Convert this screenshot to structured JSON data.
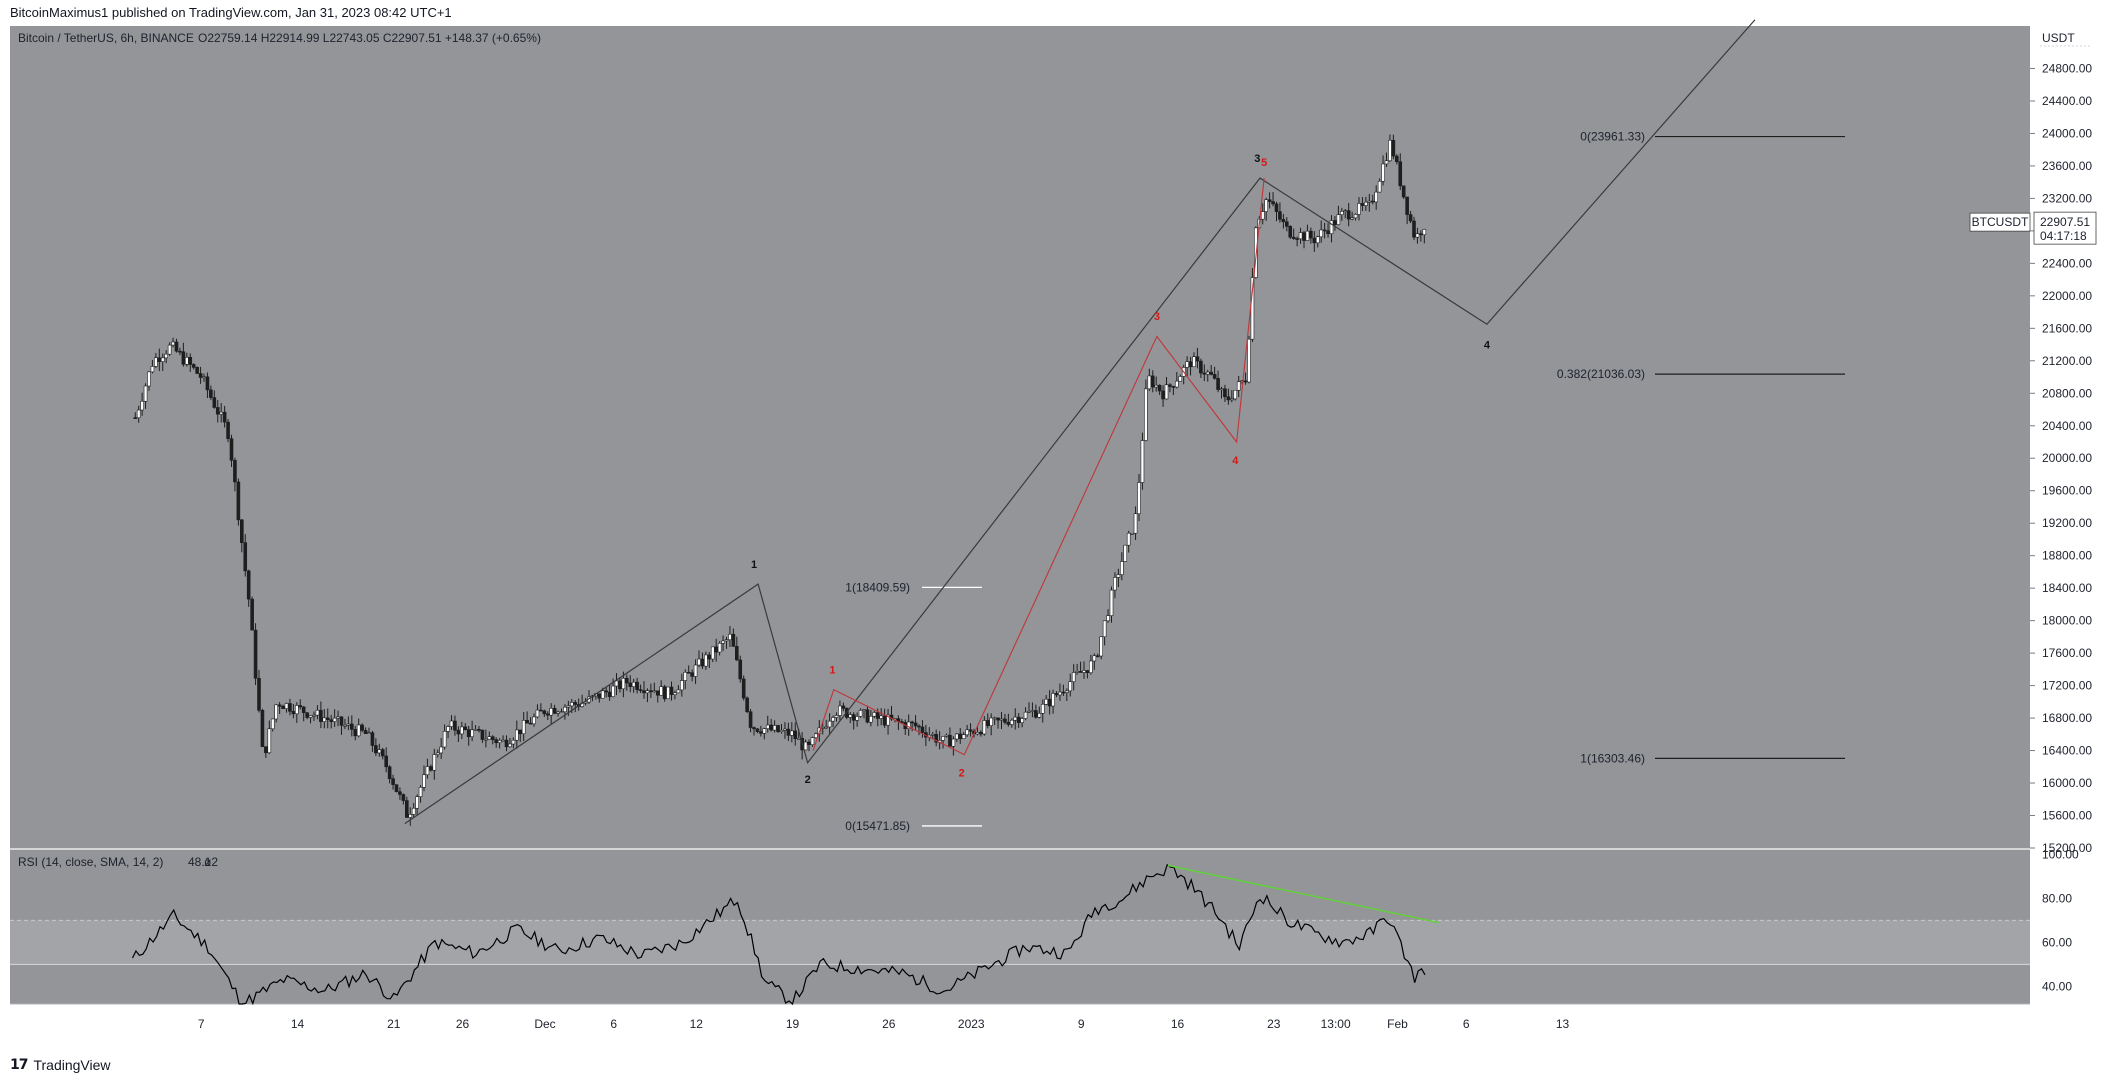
{
  "header": {
    "published": "BitcoinMaximus1 published on TradingView.com, Jan 31, 2023 08:42 UTC+1"
  },
  "footer": {
    "brand": "TradingView"
  },
  "legend": {
    "symbol": "Bitcoin / TetherUS, 6h, BINANCE",
    "ohlc": "O22759.14 H22914.99 L22743.05 C22907.51 +148.37 (+0.65%)"
  },
  "price_axis": {
    "currency": "USDT",
    "ticker": "BTCUSDT",
    "last_price": "22907.51",
    "countdown": "04:17:18"
  },
  "rsi_legend": {
    "label": "RSI (14, close, SMA, 14, 2)",
    "value": "48.12",
    "extra": "ø"
  },
  "colors": {
    "pane_bg": "#939598",
    "candle": "#1e1e1e",
    "red_wave": "#c0363b",
    "black_wave": "#3a3a3a",
    "rsi_line": "#000000",
    "divergence": "#62d13a"
  },
  "chart_data": [
    {
      "type": "candlestick",
      "ylim": [
        15200,
        25200
      ],
      "yticks": [
        "15200.00",
        "15600.00",
        "16000.00",
        "16400.00",
        "16800.00",
        "17200.00",
        "17600.00",
        "18000.00",
        "18400.00",
        "18800.00",
        "19200.00",
        "19600.00",
        "20000.00",
        "20400.00",
        "20800.00",
        "21200.00",
        "21600.00",
        "22000.00",
        "22400.00",
        "22800.00",
        "23200.00",
        "23600.00",
        "24000.00",
        "24400.00",
        "24800.00"
      ],
      "xticks": [
        {
          "label": "7",
          "day": -25
        },
        {
          "label": "14",
          "day": -18
        },
        {
          "label": "21",
          "day": -11
        },
        {
          "label": "26",
          "day": -6
        },
        {
          "label": "Dec",
          "day": 0
        },
        {
          "label": "6",
          "day": 5
        },
        {
          "label": "12",
          "day": 11
        },
        {
          "label": "19",
          "day": 18
        },
        {
          "label": "26",
          "day": 25
        },
        {
          "label": "2023",
          "day": 31
        },
        {
          "label": "9",
          "day": 39
        },
        {
          "label": "16",
          "day": 46
        },
        {
          "label": "23",
          "day": 53
        },
        {
          "label": "13:00",
          "day": 57.5
        },
        {
          "label": "Feb",
          "day": 62
        },
        {
          "label": "6",
          "day": 67
        },
        {
          "label": "13",
          "day": 74
        }
      ],
      "anchor_points": [
        {
          "day": -29.8,
          "price": 20500
        },
        {
          "day": -28.5,
          "price": 21200
        },
        {
          "day": -27.2,
          "price": 21380
        },
        {
          "day": -25,
          "price": 21000
        },
        {
          "day": -23,
          "price": 20300
        },
        {
          "day": -21.5,
          "price": 18200
        },
        {
          "day": -20.5,
          "price": 16300
        },
        {
          "day": -19.5,
          "price": 17000
        },
        {
          "day": -16,
          "price": 16800
        },
        {
          "day": -13,
          "price": 16600
        },
        {
          "day": -11.5,
          "price": 16200
        },
        {
          "day": -10,
          "price": 15600
        },
        {
          "day": -7,
          "price": 16700
        },
        {
          "day": -3,
          "price": 16500
        },
        {
          "day": 0,
          "price": 16900
        },
        {
          "day": 3,
          "price": 17000
        },
        {
          "day": 6,
          "price": 17250
        },
        {
          "day": 9,
          "price": 17100
        },
        {
          "day": 11.5,
          "price": 17500
        },
        {
          "day": 13.5,
          "price": 17800
        },
        {
          "day": 15,
          "price": 16700
        },
        {
          "day": 18,
          "price": 16600
        },
        {
          "day": 19.1,
          "price": 16400
        },
        {
          "day": 21,
          "price": 16900
        },
        {
          "day": 24,
          "price": 16800
        },
        {
          "day": 27,
          "price": 16700
        },
        {
          "day": 29,
          "price": 16500
        },
        {
          "day": 32,
          "price": 16700
        },
        {
          "day": 36,
          "price": 16900
        },
        {
          "day": 38.5,
          "price": 17300
        },
        {
          "day": 40,
          "price": 17500
        },
        {
          "day": 41.5,
          "price": 18500
        },
        {
          "day": 43,
          "price": 19300
        },
        {
          "day": 43.8,
          "price": 21000
        },
        {
          "day": 45,
          "price": 20800
        },
        {
          "day": 47,
          "price": 21200
        },
        {
          "day": 48.5,
          "price": 21000
        },
        {
          "day": 49.5,
          "price": 20700
        },
        {
          "day": 51,
          "price": 21000
        },
        {
          "day": 51.7,
          "price": 22900
        },
        {
          "day": 52.5,
          "price": 23200
        },
        {
          "day": 54,
          "price": 22800
        },
        {
          "day": 56,
          "price": 22700
        },
        {
          "day": 58,
          "price": 23000
        },
        {
          "day": 60,
          "price": 23100
        },
        {
          "day": 61.5,
          "price": 23900
        },
        {
          "day": 62.5,
          "price": 23200
        },
        {
          "day": 63.3,
          "price": 22700
        },
        {
          "day": 64,
          "price": 22900
        }
      ],
      "fib_levels_left": [
        {
          "label": "1(18409.59)",
          "price": 18409.59
        },
        {
          "label": "0(15471.85)",
          "price": 15471.85
        }
      ],
      "fib_levels_right": [
        {
          "label": "0(23961.33)",
          "price": 23961.33
        },
        {
          "label": "0.382(21036.03)",
          "price": 21036.03
        },
        {
          "label": "1(16303.46)",
          "price": 16303.46
        }
      ],
      "black_wave": [
        {
          "day": -10.2,
          "price": 15500
        },
        {
          "day": 15.5,
          "price": 18450
        },
        {
          "day": 19.1,
          "price": 16250
        },
        {
          "day": 52,
          "price": 23450
        },
        {
          "day": 68.5,
          "price": 21650
        },
        {
          "day": 88,
          "price": 25400
        }
      ],
      "black_labels": [
        {
          "label": "1",
          "day": 15.2,
          "price": 18650
        },
        {
          "label": "2",
          "day": 19.1,
          "price": 16000
        },
        {
          "label": "3",
          "day": 51.8,
          "price": 23650
        },
        {
          "label": "4",
          "day": 68.5,
          "price": 21350
        }
      ],
      "red_wave": [
        {
          "day": 19.5,
          "price": 16400
        },
        {
          "day": 21,
          "price": 17150
        },
        {
          "day": 30.5,
          "price": 16350
        },
        {
          "day": 44.5,
          "price": 21500
        },
        {
          "day": 50.3,
          "price": 20200
        },
        {
          "day": 52.3,
          "price": 23450
        }
      ],
      "red_labels": [
        {
          "label": "1",
          "day": 20.9,
          "price": 17350
        },
        {
          "label": "2",
          "day": 30.3,
          "price": 16080
        },
        {
          "label": "3",
          "day": 44.5,
          "price": 21700
        },
        {
          "label": "4",
          "day": 50.2,
          "price": 19930
        },
        {
          "label": "5",
          "day": 52.3,
          "price": 23600
        }
      ]
    },
    {
      "type": "line",
      "name": "RSI",
      "ylim": [
        32,
        102
      ],
      "yticks": [
        "40.00",
        "60.00",
        "80.00",
        "100.00"
      ],
      "bands": [
        70,
        50
      ],
      "anchor_points": [
        {
          "day": -30,
          "value": 52
        },
        {
          "day": -27,
          "value": 72
        },
        {
          "day": -24.5,
          "value": 58
        },
        {
          "day": -22,
          "value": 32
        },
        {
          "day": -19,
          "value": 43
        },
        {
          "day": -16,
          "value": 38
        },
        {
          "day": -13,
          "value": 46
        },
        {
          "day": -11,
          "value": 34
        },
        {
          "day": -8,
          "value": 60
        },
        {
          "day": -5,
          "value": 55
        },
        {
          "day": -2,
          "value": 66
        },
        {
          "day": 1,
          "value": 56
        },
        {
          "day": 4,
          "value": 62
        },
        {
          "day": 7,
          "value": 54
        },
        {
          "day": 10,
          "value": 60
        },
        {
          "day": 12,
          "value": 70
        },
        {
          "day": 14,
          "value": 80
        },
        {
          "day": 16,
          "value": 42
        },
        {
          "day": 18,
          "value": 33
        },
        {
          "day": 20,
          "value": 50
        },
        {
          "day": 23,
          "value": 48
        },
        {
          "day": 26,
          "value": 46
        },
        {
          "day": 29,
          "value": 38
        },
        {
          "day": 32,
          "value": 48
        },
        {
          "day": 35,
          "value": 58
        },
        {
          "day": 38,
          "value": 55
        },
        {
          "day": 40,
          "value": 75
        },
        {
          "day": 42,
          "value": 80
        },
        {
          "day": 44,
          "value": 90
        },
        {
          "day": 45.5,
          "value": 94
        },
        {
          "day": 47,
          "value": 86
        },
        {
          "day": 49,
          "value": 72
        },
        {
          "day": 50.5,
          "value": 58
        },
        {
          "day": 52,
          "value": 82
        },
        {
          "day": 54,
          "value": 70
        },
        {
          "day": 56,
          "value": 64
        },
        {
          "day": 58,
          "value": 60
        },
        {
          "day": 60,
          "value": 64
        },
        {
          "day": 61.3,
          "value": 72
        },
        {
          "day": 62.5,
          "value": 55
        },
        {
          "day": 63.2,
          "value": 44
        },
        {
          "day": 64,
          "value": 48
        }
      ],
      "divergence_line": [
        {
          "day": 45.3,
          "value": 95
        },
        {
          "day": 65,
          "value": 69
        }
      ]
    }
  ]
}
